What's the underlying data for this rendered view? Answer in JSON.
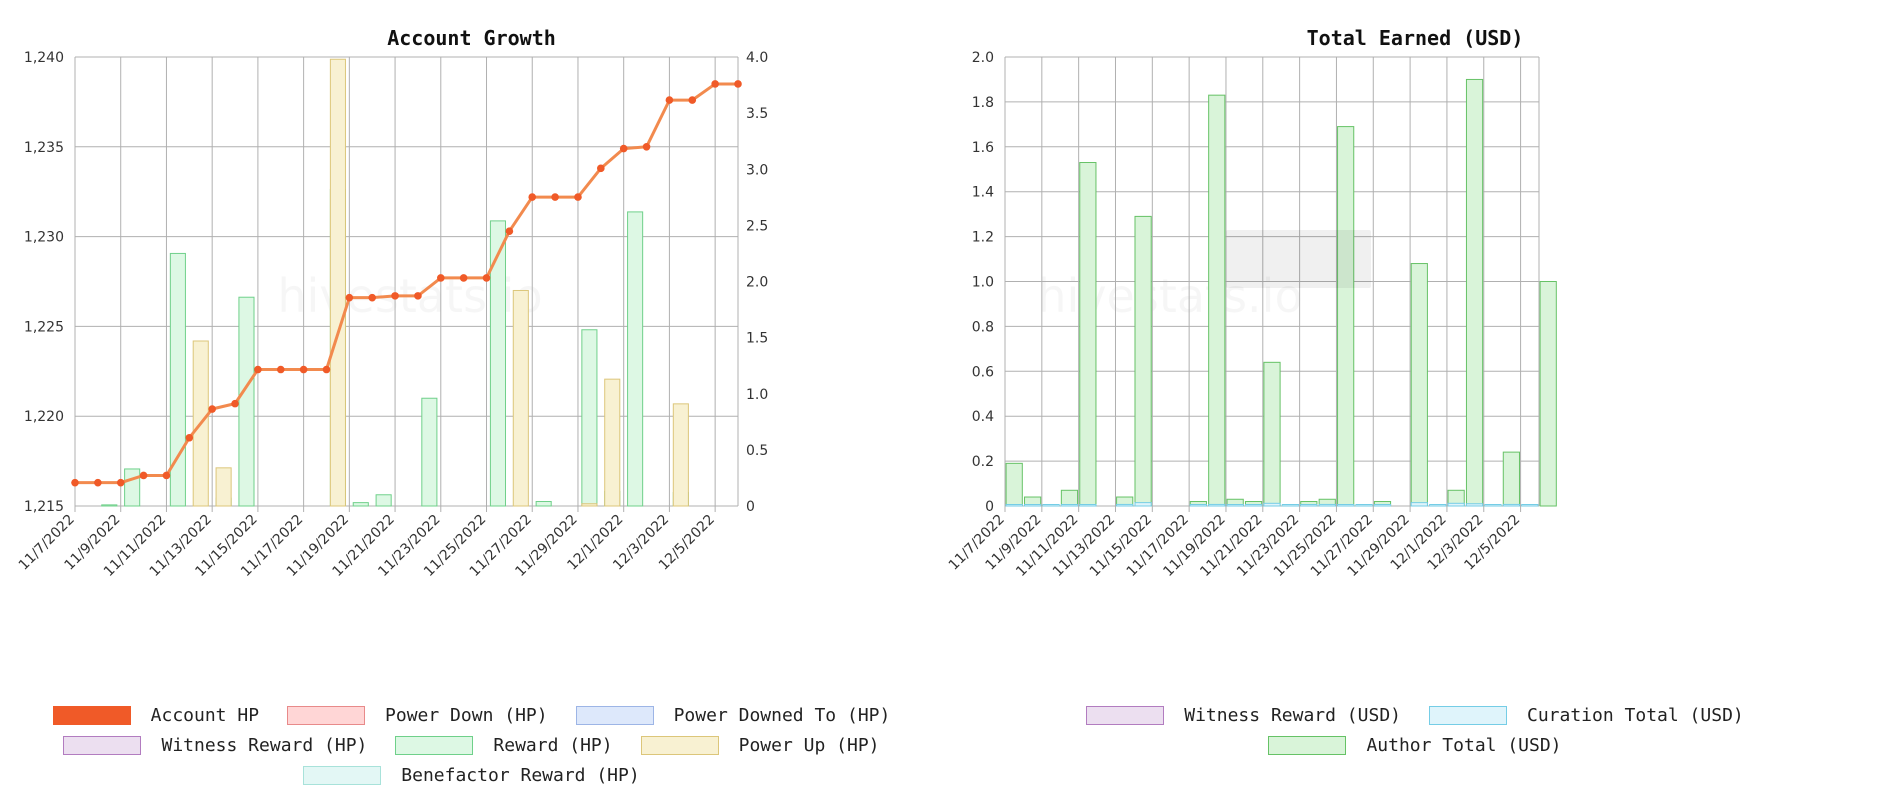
{
  "colors": {
    "account_hp": "#f05a28",
    "account_hp_line": "#f28a4e",
    "power_down": "#ffd6d6",
    "power_down_border": "#e88a8a",
    "power_downed_to": "#dde8fb",
    "power_downed_to_border": "#9db5e6",
    "witness": "#ecdff0",
    "witness_border": "#b27cc0",
    "reward": "#ddf8e4",
    "reward_border": "#6fd08a",
    "power_up": "#f8f1d2",
    "power_up_border": "#dcc67a",
    "benefactor": "#e3f7f5",
    "benefactor_border": "#a8e2da",
    "curation": "#dff4fb",
    "curation_border": "#75cde6",
    "author": "#d9f4d9",
    "author_border": "#66c266"
  },
  "watermark": "hivestats.io",
  "chart_data": [
    {
      "type": "bar",
      "title": "Account Growth",
      "categories": [
        "11/7/2022",
        "11/8/2022",
        "11/9/2022",
        "11/10/2022",
        "11/11/2022",
        "11/12/2022",
        "11/13/2022",
        "11/14/2022",
        "11/15/2022",
        "11/16/2022",
        "11/17/2022",
        "11/18/2022",
        "11/19/2022",
        "11/20/2022",
        "11/21/2022",
        "11/22/2022",
        "11/23/2022",
        "11/24/2022",
        "11/25/2022",
        "11/26/2022",
        "11/27/2022",
        "11/28/2022",
        "11/29/2022",
        "11/30/2022",
        "12/1/2022",
        "12/2/2022",
        "12/3/2022",
        "12/4/2022",
        "12/5/2022",
        "12/6/2022"
      ],
      "x_tick_labels": [
        "11/7/2022",
        "11/9/2022",
        "11/11/2022",
        "11/13/2022",
        "11/15/2022",
        "11/17/2022",
        "11/19/2022",
        "11/21/2022",
        "11/23/2022",
        "11/25/2022",
        "11/27/2022",
        "11/29/2022",
        "12/1/2022",
        "12/3/2022",
        "12/5/2022"
      ],
      "left_axis": {
        "ylim": [
          1215,
          1240
        ],
        "ticks": [
          "1,215",
          "1,220",
          "1,225",
          "1,230",
          "1,235",
          "1,240"
        ],
        "tick_values": [
          1215,
          1220,
          1225,
          1230,
          1235,
          1240
        ]
      },
      "right_axis": {
        "ylim": [
          0,
          4.0
        ],
        "ticks": [
          "0",
          "0.5",
          "1.0",
          "1.5",
          "2.0",
          "2.5",
          "3.0",
          "3.5",
          "4.0"
        ],
        "tick_values": [
          0,
          0.5,
          1.0,
          1.5,
          2.0,
          2.5,
          3.0,
          3.5,
          4.0
        ]
      },
      "grid": true,
      "series": [
        {
          "name": "Account HP",
          "kind": "line",
          "axis": "left",
          "values": [
            1216.3,
            1216.3,
            1216.3,
            1216.7,
            1216.7,
            1218.8,
            1220.4,
            1220.7,
            1222.6,
            1222.6,
            1222.6,
            1222.6,
            1226.6,
            1226.6,
            1226.7,
            1226.7,
            1227.7,
            1227.7,
            1227.7,
            1230.3,
            1232.2,
            1232.2,
            1232.2,
            1233.8,
            1234.9,
            1235.0,
            1237.6,
            1237.6,
            1238.5,
            1238.5
          ]
        },
        {
          "name": "Power Down (HP)",
          "kind": "bar",
          "axis": "right",
          "values": [
            0,
            0,
            0,
            0,
            0,
            0,
            0,
            0,
            0,
            0,
            0,
            0,
            0,
            0,
            0,
            0,
            0,
            0,
            0,
            0,
            0,
            0,
            0,
            0,
            0,
            0,
            0,
            0,
            0,
            0
          ]
        },
        {
          "name": "Power Downed To (HP)",
          "kind": "bar",
          "axis": "right",
          "values": [
            0,
            0,
            0,
            0,
            0,
            0,
            0,
            0,
            0,
            0,
            0,
            0,
            0,
            0,
            0,
            0,
            0,
            0,
            0,
            0,
            0,
            0,
            0,
            0,
            0,
            0,
            0,
            0,
            0,
            0
          ]
        },
        {
          "name": "Witness Reward (HP)",
          "kind": "bar",
          "axis": "right",
          "values": [
            0,
            0,
            0,
            0,
            0,
            0,
            0,
            0,
            0,
            0,
            0,
            0,
            0,
            0,
            0,
            0,
            0,
            0,
            0,
            0,
            0,
            0,
            0,
            0,
            0,
            0,
            0,
            0,
            0,
            0
          ]
        },
        {
          "name": "Reward (HP)",
          "kind": "bar",
          "axis": "right",
          "values": [
            0,
            0.01,
            0.33,
            0,
            2.25,
            0,
            0.07,
            1.86,
            0,
            0,
            0,
            2.82,
            0.03,
            0.1,
            0,
            0.96,
            0,
            0,
            2.54,
            0,
            0.04,
            0,
            1.57,
            0.13,
            2.62,
            0,
            0.12,
            0,
            0,
            0
          ]
        },
        {
          "name": "Power Up (HP)",
          "kind": "bar",
          "axis": "right",
          "values": [
            0,
            0,
            0,
            0,
            0,
            1.47,
            0.34,
            0,
            0,
            0,
            0,
            3.98,
            0,
            0,
            0,
            0,
            0,
            0,
            0,
            1.92,
            0,
            0,
            0.02,
            1.13,
            0,
            0,
            0.91,
            0,
            0,
            0
          ]
        },
        {
          "name": "Benefactor Reward (HP)",
          "kind": "bar",
          "axis": "right",
          "values": [
            0,
            0,
            0,
            0,
            0,
            0,
            0,
            0,
            0,
            0,
            0,
            0,
            0,
            0,
            0,
            0,
            0,
            0,
            0,
            0,
            0,
            0,
            0,
            0,
            0,
            0,
            0,
            0,
            0,
            0
          ]
        }
      ]
    },
    {
      "type": "bar",
      "title": "Total Earned (USD)",
      "categories": [
        "11/7/2022",
        "11/8/2022",
        "11/9/2022",
        "11/10/2022",
        "11/11/2022",
        "11/12/2022",
        "11/13/2022",
        "11/14/2022",
        "11/15/2022",
        "11/16/2022",
        "11/17/2022",
        "11/18/2022",
        "11/19/2022",
        "11/20/2022",
        "11/21/2022",
        "11/22/2022",
        "11/23/2022",
        "11/24/2022",
        "11/25/2022",
        "11/26/2022",
        "11/27/2022",
        "11/28/2022",
        "11/29/2022",
        "11/30/2022",
        "12/1/2022",
        "12/2/2022",
        "12/3/2022",
        "12/4/2022",
        "12/5/2022",
        "12/6/2022"
      ],
      "x_tick_labels": [
        "11/7/2022",
        "11/9/2022",
        "11/11/2022",
        "11/13/2022",
        "11/15/2022",
        "11/17/2022",
        "11/19/2022",
        "11/21/2022",
        "11/23/2022",
        "11/25/2022",
        "11/27/2022",
        "11/29/2022",
        "12/1/2022",
        "12/3/2022",
        "12/5/2022"
      ],
      "ylim": [
        0,
        2.0
      ],
      "y_ticks": [
        "0",
        "0.2",
        "0.4",
        "0.6",
        "0.8",
        "1.0",
        "1.2",
        "1.4",
        "1.6",
        "1.8",
        "2.0"
      ],
      "y_tick_values": [
        0,
        0.2,
        0.4,
        0.6,
        0.8,
        1.0,
        1.2,
        1.4,
        1.6,
        1.8,
        2.0
      ],
      "grid": true,
      "series": [
        {
          "name": "Witness Reward (USD)",
          "values": [
            0,
            0,
            0,
            0,
            0,
            0,
            0,
            0,
            0,
            0,
            0,
            0,
            0,
            0,
            0,
            0,
            0,
            0,
            0,
            0,
            0,
            0,
            0,
            0,
            0,
            0,
            0,
            0,
            0,
            0
          ]
        },
        {
          "name": "Curation Total (USD)",
          "values": [
            0.004,
            0.004,
            0.006,
            0.003,
            0.004,
            0,
            0.007,
            0.015,
            0,
            0,
            0.003,
            0.007,
            0.003,
            0.005,
            0.012,
            0.004,
            0.004,
            0.007,
            0.006,
            0.004,
            0.003,
            0,
            0.015,
            0.006,
            0.012,
            0.01,
            0.005,
            0.007,
            0.003,
            0
          ]
        },
        {
          "name": "Author Total (USD)",
          "values": [
            0.19,
            0.04,
            0,
            0.07,
            1.53,
            0,
            0.04,
            1.29,
            0,
            0,
            0.02,
            1.83,
            0.03,
            0.02,
            0.64,
            0,
            0.02,
            0.03,
            1.69,
            0,
            0.02,
            0,
            1.08,
            0,
            0.07,
            1.9,
            0,
            0.24,
            0,
            1.0
          ]
        }
      ]
    }
  ],
  "legend_left": [
    [
      "Account HP",
      "Power Down (HP)",
      "Power Downed To (HP)"
    ],
    [
      "Witness Reward (HP)",
      "Reward (HP)",
      "Power Up (HP)"
    ],
    [
      "Benefactor Reward (HP)"
    ]
  ],
  "legend_right": [
    [
      "Witness Reward (USD)",
      "Curation Total (USD)"
    ],
    [
      "Author Total (USD)"
    ]
  ]
}
